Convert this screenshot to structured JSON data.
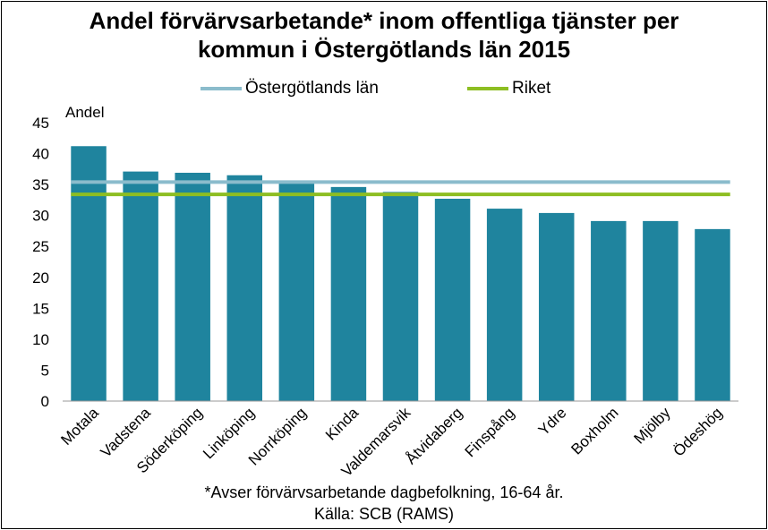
{
  "chart_data": {
    "type": "bar",
    "title_line1": "Andel förvärvsarbetande* inom offentliga tjänster per",
    "title_line2": "kommun i Östergötlands län 2015",
    "ylabel": "Andel",
    "ylim": [
      0,
      45
    ],
    "yticks": [
      0,
      5,
      10,
      15,
      20,
      25,
      30,
      35,
      40,
      45
    ],
    "categories": [
      "Motala",
      "Vadstena",
      "Söderköping",
      "Linköping",
      "Norrköping",
      "Kinda",
      "Valdemarsvik",
      "Åtvidaberg",
      "Finspång",
      "Ydre",
      "Boxholm",
      "Mjölby",
      "Ödeshög"
    ],
    "values": [
      41.2,
      37.1,
      36.9,
      36.5,
      35.3,
      34.6,
      33.8,
      32.7,
      31.1,
      30.4,
      29.1,
      29.1,
      27.8
    ],
    "reference_lines": [
      {
        "name": "Östergötlands län",
        "value": 35.4,
        "color": "#8BBCCC"
      },
      {
        "name": "Riket",
        "value": 33.4,
        "color": "#8DBE22"
      }
    ],
    "bar_color": "#1F849E",
    "legend_position": "top",
    "grid": false,
    "footnote": "*Avser förvärvsarbetande dagbefolkning,  16-64 år.",
    "source": "Källa: SCB (RAMS)"
  }
}
